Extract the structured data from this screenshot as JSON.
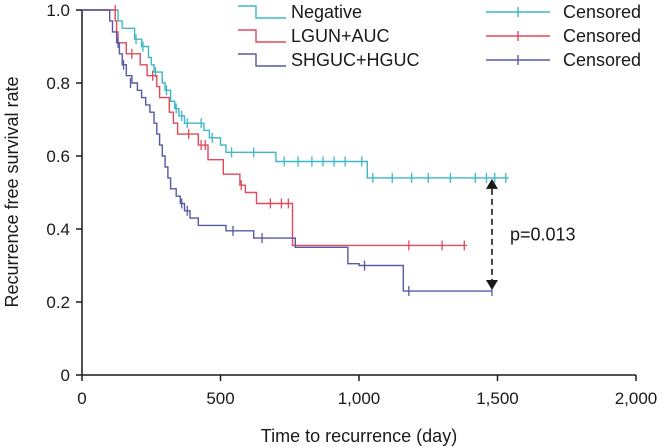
{
  "chart_data": {
    "type": "line",
    "subtype": "kaplan-meier",
    "title": "",
    "xlabel": "Time to recurrence (day)",
    "ylabel": "Recurrence free survival rate",
    "xlim": [
      0,
      2000
    ],
    "ylim": [
      0,
      1.0
    ],
    "xticks": [
      0,
      500,
      1000,
      1500,
      2000
    ],
    "xtick_labels": [
      "0",
      "500",
      "1,000",
      "1,500",
      "2,000"
    ],
    "yticks": [
      0,
      0.2,
      0.4,
      0.6,
      0.8,
      1.0
    ],
    "ytick_labels": [
      "0",
      "0.2",
      "0.4",
      "0.6",
      "0.8",
      "1.0"
    ],
    "grid": false,
    "legend": {
      "placement": "top",
      "entries": [
        "Negative",
        "LGUN+AUC",
        "SHGUC+HGUC"
      ],
      "censor_label": "Censored"
    },
    "series": [
      {
        "name": "Negative",
        "color": "#3db8c6",
        "steps": [
          [
            0,
            1.0
          ],
          [
            130,
            0.97
          ],
          [
            145,
            0.95
          ],
          [
            190,
            0.92
          ],
          [
            215,
            0.9
          ],
          [
            240,
            0.87
          ],
          [
            250,
            0.85
          ],
          [
            260,
            0.83
          ],
          [
            290,
            0.8
          ],
          [
            300,
            0.78
          ],
          [
            320,
            0.75
          ],
          [
            335,
            0.73
          ],
          [
            350,
            0.71
          ],
          [
            370,
            0.69
          ],
          [
            440,
            0.67
          ],
          [
            460,
            0.65
          ],
          [
            500,
            0.63
          ],
          [
            520,
            0.61
          ],
          [
            700,
            0.585
          ],
          [
            1030,
            0.54
          ],
          [
            1540,
            0.54
          ]
        ],
        "censored": [
          [
            195,
            0.92
          ],
          [
            220,
            0.9
          ],
          [
            265,
            0.83
          ],
          [
            305,
            0.78
          ],
          [
            340,
            0.73
          ],
          [
            360,
            0.71
          ],
          [
            380,
            0.69
          ],
          [
            430,
            0.69
          ],
          [
            470,
            0.65
          ],
          [
            540,
            0.61
          ],
          [
            620,
            0.61
          ],
          [
            730,
            0.585
          ],
          [
            780,
            0.585
          ],
          [
            830,
            0.585
          ],
          [
            870,
            0.585
          ],
          [
            910,
            0.585
          ],
          [
            950,
            0.585
          ],
          [
            1010,
            0.585
          ],
          [
            1050,
            0.54
          ],
          [
            1120,
            0.54
          ],
          [
            1190,
            0.54
          ],
          [
            1250,
            0.54
          ],
          [
            1330,
            0.54
          ],
          [
            1420,
            0.54
          ],
          [
            1460,
            0.54
          ],
          [
            1490,
            0.54
          ],
          [
            1530,
            0.54
          ]
        ]
      },
      {
        "name": "LGUN+AUC",
        "color": "#e04a5a",
        "steps": [
          [
            0,
            1.0
          ],
          [
            120,
            0.97
          ],
          [
            125,
            0.94
          ],
          [
            130,
            0.91
          ],
          [
            160,
            0.88
          ],
          [
            210,
            0.85
          ],
          [
            235,
            0.82
          ],
          [
            270,
            0.79
          ],
          [
            280,
            0.76
          ],
          [
            315,
            0.72
          ],
          [
            330,
            0.69
          ],
          [
            345,
            0.66
          ],
          [
            420,
            0.63
          ],
          [
            455,
            0.59
          ],
          [
            510,
            0.55
          ],
          [
            570,
            0.52
          ],
          [
            590,
            0.5
          ],
          [
            630,
            0.47
          ],
          [
            760,
            0.355
          ],
          [
            1390,
            0.355
          ]
        ],
        "censored": [
          [
            120,
            1.0
          ],
          [
            180,
            0.88
          ],
          [
            255,
            0.82
          ],
          [
            385,
            0.66
          ],
          [
            430,
            0.63
          ],
          [
            445,
            0.63
          ],
          [
            575,
            0.52
          ],
          [
            680,
            0.47
          ],
          [
            720,
            0.47
          ],
          [
            745,
            0.47
          ],
          [
            1180,
            0.355
          ],
          [
            1300,
            0.355
          ],
          [
            1380,
            0.355
          ]
        ]
      },
      {
        "name": "SHGUC+HGUC",
        "color": "#5858a8",
        "steps": [
          [
            0,
            1.0
          ],
          [
            100,
            0.97
          ],
          [
            110,
            0.94
          ],
          [
            125,
            0.91
          ],
          [
            135,
            0.88
          ],
          [
            145,
            0.85
          ],
          [
            160,
            0.82
          ],
          [
            180,
            0.8
          ],
          [
            200,
            0.78
          ],
          [
            215,
            0.76
          ],
          [
            230,
            0.74
          ],
          [
            245,
            0.72
          ],
          [
            260,
            0.69
          ],
          [
            270,
            0.66
          ],
          [
            280,
            0.63
          ],
          [
            290,
            0.6
          ],
          [
            300,
            0.57
          ],
          [
            310,
            0.54
          ],
          [
            320,
            0.51
          ],
          [
            340,
            0.49
          ],
          [
            355,
            0.47
          ],
          [
            370,
            0.45
          ],
          [
            390,
            0.43
          ],
          [
            420,
            0.41
          ],
          [
            520,
            0.395
          ],
          [
            620,
            0.375
          ],
          [
            770,
            0.35
          ],
          [
            960,
            0.305
          ],
          [
            1000,
            0.3
          ],
          [
            1160,
            0.23
          ],
          [
            1480,
            0.23
          ]
        ],
        "censored": [
          [
            130,
            0.91
          ],
          [
            150,
            0.85
          ],
          [
            175,
            0.8
          ],
          [
            360,
            0.47
          ],
          [
            380,
            0.45
          ],
          [
            545,
            0.395
          ],
          [
            650,
            0.375
          ],
          [
            1020,
            0.3
          ],
          [
            1180,
            0.23
          ],
          [
            1480,
            0.23
          ]
        ]
      }
    ],
    "annotations": [
      {
        "text": "p=0.013",
        "type": "double-arrow",
        "x": 1480,
        "y_from": 0.54,
        "y_to": 0.23
      }
    ]
  }
}
